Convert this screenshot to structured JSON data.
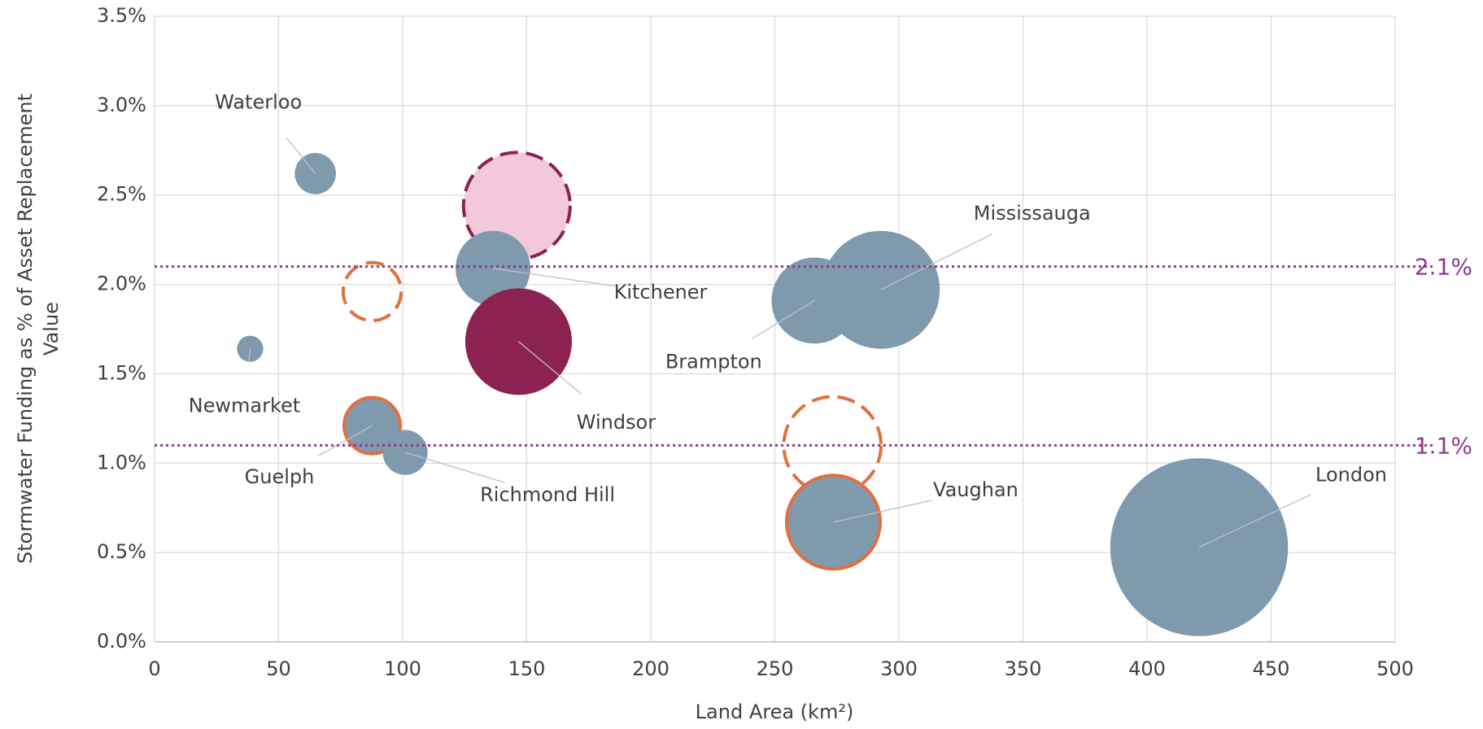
{
  "chart_data": {
    "type": "bubble",
    "xlabel": "Land Area (km²)",
    "ylabel": [
      "Stormwater Funding as % of Asset Replacement",
      "Value"
    ],
    "xlim": [
      0,
      500
    ],
    "xticks": [
      0,
      50,
      100,
      150,
      200,
      250,
      300,
      350,
      400,
      450,
      500
    ],
    "ylim": [
      0,
      3.5
    ],
    "yticks": [
      {
        "value": 0,
        "label": "0.0%"
      },
      {
        "value": 0.5,
        "label": "0.5%"
      },
      {
        "value": 1,
        "label": "1.0%"
      },
      {
        "value": 1.5,
        "label": "1.5%"
      },
      {
        "value": 2,
        "label": "2.0%"
      },
      {
        "value": 2.5,
        "label": "2.5%"
      },
      {
        "value": 3,
        "label": "3.0%"
      },
      {
        "value": 3.5,
        "label": "3.5%"
      }
    ],
    "grid": true,
    "reference_lines": [
      {
        "value": 2.1,
        "label": "2.1%",
        "color": "#8e3a8e"
      },
      {
        "value": 1.1,
        "label": "1.1%",
        "color": "#8e3a8e"
      }
    ],
    "points": [
      {
        "label": "Waterloo",
        "x": 64.8,
        "y": 2.62,
        "size": 22,
        "fill": "#7f9aad",
        "stroke": "none",
        "dashed": false
      },
      {
        "label": "Newmarket",
        "x": 38.5,
        "y": 1.64,
        "size": 14,
        "fill": "#7f9aad",
        "stroke": "none",
        "dashed": false
      },
      {
        "label": null,
        "x": 87.7,
        "y": 1.96,
        "size": 31,
        "fill": "none",
        "stroke": "#e07040",
        "dashed": true
      },
      {
        "label": "Guelph",
        "x": 87.7,
        "y": 1.21,
        "size": 30,
        "fill": "#7f9aad",
        "stroke": "#e07040",
        "dashed": false
      },
      {
        "label": "Richmond Hill",
        "x": 101,
        "y": 1.06,
        "size": 24,
        "fill": "#7f9aad",
        "stroke": "none",
        "dashed": false
      },
      {
        "label": null,
        "x": 146,
        "y": 2.44,
        "size": 57,
        "fill": "#f2c8da",
        "stroke": "#8b2252",
        "dashed": true
      },
      {
        "label": "Kitchener",
        "x": 136.4,
        "y": 2.09,
        "size": 40,
        "fill": "#7f9aad",
        "stroke": "none",
        "dashed": false
      },
      {
        "label": "Windsor",
        "x": 146.7,
        "y": 1.68,
        "size": 57,
        "fill": "#8b2252",
        "stroke": "none",
        "dashed": false
      },
      {
        "label": "Brampton",
        "x": 266,
        "y": 1.91,
        "size": 46,
        "fill": "#7f9aad",
        "stroke": "none",
        "dashed": false
      },
      {
        "label": "Mississauga",
        "x": 292.7,
        "y": 1.97,
        "size": 63,
        "fill": "#7f9aad",
        "stroke": "none",
        "dashed": false
      },
      {
        "label": null,
        "x": 273.2,
        "y": 1.1,
        "size": 52,
        "fill": "none",
        "stroke": "#e07040",
        "dashed": true
      },
      {
        "label": "Vaughan",
        "x": 273.6,
        "y": 0.67,
        "size": 50,
        "fill": "#7f9aad",
        "stroke": "#e07040",
        "dashed": false
      },
      {
        "label": "London",
        "x": 421,
        "y": 0.53,
        "size": 95,
        "fill": "#7f9aad",
        "stroke": "none",
        "dashed": false
      }
    ]
  }
}
